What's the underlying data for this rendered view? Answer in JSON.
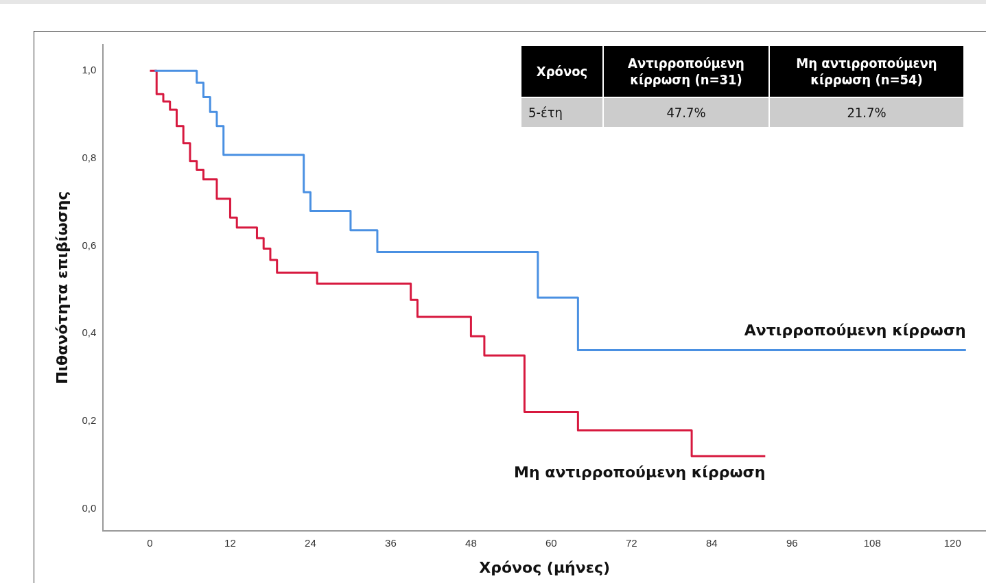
{
  "chart_data": {
    "type": "step",
    "xlabel": "Χρόνος (μήνες)",
    "ylabel": "Πιθανότητα επιβίωσης",
    "series": [
      {
        "name": "Αντιρροπούμενη κίρρωση",
        "color": "#4a90e2",
        "x": [
          0.7,
          7,
          8,
          9,
          10,
          11,
          23,
          24,
          30,
          34,
          58,
          64,
          122
        ],
        "values": [
          1,
          0.973,
          0.94,
          0.906,
          0.874,
          0.808,
          0.723,
          0.68,
          0.636,
          0.586,
          0.482,
          0.362,
          0.362
        ]
      },
      {
        "name": "Μη αντιρροπούμενη κίρρωση",
        "color": "#d7193f",
        "x": [
          0,
          1,
          2,
          3,
          4,
          5,
          6,
          7,
          8,
          10,
          12,
          13,
          16,
          17,
          18,
          19,
          25,
          39,
          40,
          48,
          50,
          56,
          64,
          81,
          92
        ],
        "values": [
          1,
          0.947,
          0.93,
          0.911,
          0.874,
          0.835,
          0.794,
          0.774,
          0.752,
          0.708,
          0.665,
          0.642,
          0.618,
          0.594,
          0.568,
          0.539,
          0.514,
          0.477,
          0.438,
          0.394,
          0.35,
          0.221,
          0.179,
          0.12,
          0.12
        ]
      }
    ],
    "xlim": [
      -7,
      125
    ],
    "xticks": [
      0,
      12,
      24,
      36,
      48,
      60,
      72,
      84,
      96,
      108,
      120
    ],
    "ylim": [
      -0.05,
      1.06
    ],
    "yticks": [
      {
        "value": 0,
        "label": "0,0"
      },
      {
        "value": 0.2,
        "label": "0,2"
      },
      {
        "value": 0.4,
        "label": "0,4"
      },
      {
        "value": 0.6,
        "label": "0,6"
      },
      {
        "value": 0.8,
        "label": "0,8"
      },
      {
        "value": 1,
        "label": "1,0"
      }
    ],
    "annotations": [
      "Χρόνος",
      "Αντιρροπούμενη κίρρωση (n=31)",
      "Μη αντιρροπούμενη κίρρωση (n=54)",
      "5-έτη",
      "47.7%",
      "21.7%"
    ],
    "grid": false,
    "legend": false,
    "marker": "none",
    "line_style": "solid"
  }
}
